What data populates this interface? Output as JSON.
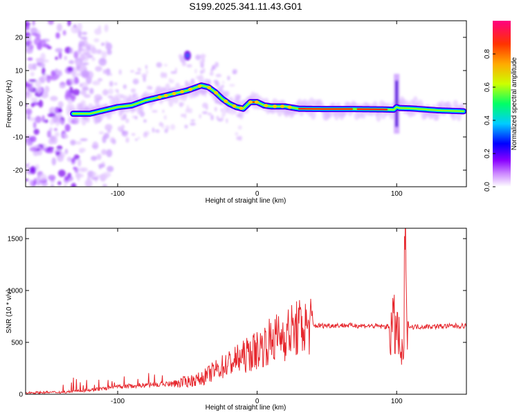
{
  "chart_data": [
    {
      "type": "heatmap",
      "title": "S199.2025.341.11.43.G01",
      "xlabel": "Height of straight line (km)",
      "ylabel": "Frequency (Hz)",
      "xlim": [
        -166,
        150
      ],
      "ylim": [
        -25,
        25
      ],
      "x_ticks": [
        -100,
        0,
        100
      ],
      "y_ticks": [
        -20,
        -10,
        0,
        10,
        20
      ],
      "colorbar": {
        "label": "Normalized spectral amplitude",
        "range": [
          0,
          1
        ],
        "ticks": [
          0.0,
          0.2,
          0.4,
          0.6,
          0.8
        ],
        "colors": [
          "#ffffff",
          "#8a00ff",
          "#0000ff",
          "#00ccff",
          "#00ff66",
          "#ccff00",
          "#ff3300",
          "#ff0080"
        ]
      },
      "ridge": {
        "x": [
          -132,
          -120,
          -110,
          -100,
          -90,
          -80,
          -70,
          -60,
          -50,
          -40,
          -35,
          -30,
          -25,
          -20,
          -15,
          -10,
          -5,
          0,
          5,
          10,
          20,
          30,
          50,
          70,
          90,
          98,
          100,
          102,
          110,
          130,
          150
        ],
        "y": [
          -3,
          -3,
          -2,
          -1,
          -0.5,
          1,
          2,
          3,
          4,
          5.5,
          5,
          3.5,
          1.5,
          0,
          -1,
          -1.5,
          0.5,
          0.5,
          -0.5,
          -0.8,
          -0.8,
          -1.5,
          -1.6,
          -1.6,
          -1.7,
          -1.8,
          -1,
          -1.3,
          -1.4,
          -2,
          -2.3
        ]
      },
      "noise_region_x": [
        -166,
        -105
      ],
      "features": [
        {
          "x": -50,
          "y": 14.5
        },
        {
          "x": 100,
          "y": 0
        }
      ]
    },
    {
      "type": "line",
      "xlabel": "Height of straight line (km)",
      "ylabel": "SNR (10 * v/v)",
      "xlim": [
        -166,
        150
      ],
      "ylim": [
        0,
        1600
      ],
      "x_ticks": [
        -100,
        0,
        100
      ],
      "y_ticks": [
        0,
        500,
        1000,
        1500
      ],
      "color": "#e6262c",
      "trend": {
        "x": [
          -166,
          -140,
          -120,
          -100,
          -80,
          -60,
          -40,
          -30,
          -20,
          -10,
          0,
          10,
          20,
          30,
          40,
          60,
          80,
          95,
          100,
          103,
          105,
          106,
          107,
          110,
          130,
          150
        ],
        "y": [
          15,
          20,
          40,
          70,
          90,
          100,
          150,
          230,
          300,
          360,
          430,
          520,
          580,
          640,
          660,
          665,
          660,
          650,
          640,
          400,
          300,
          1600,
          700,
          650,
          655,
          660
        ]
      }
    }
  ]
}
